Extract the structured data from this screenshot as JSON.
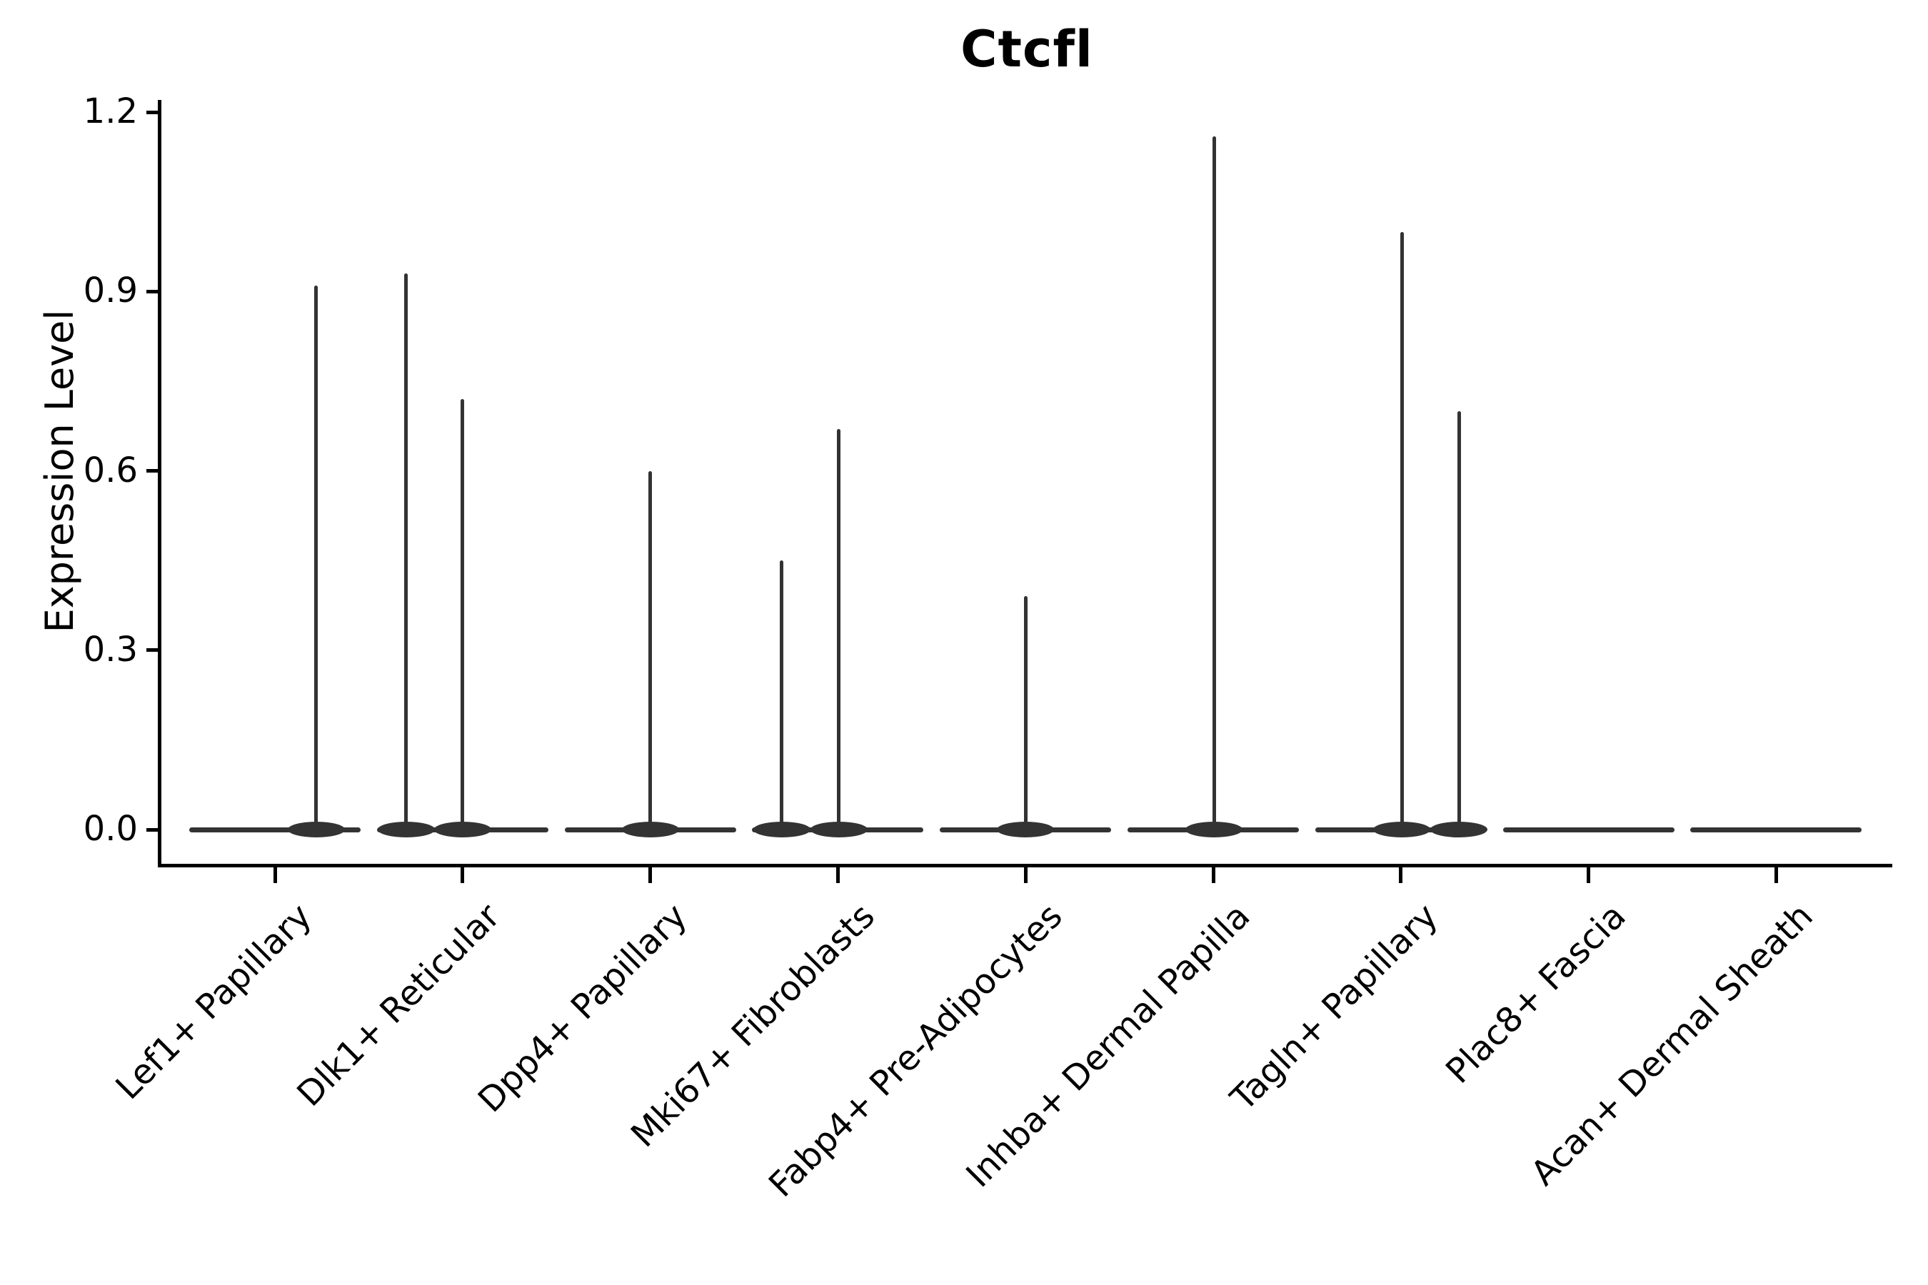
{
  "chart_data": {
    "type": "violin",
    "title": "Ctcfl",
    "ylabel": "Expression Level",
    "xlabel": "",
    "ylim": [
      0,
      1.2
    ],
    "yticks": [
      "0.0",
      "0.3",
      "0.6",
      "0.9",
      "1.2"
    ],
    "ytick_values": [
      0.0,
      0.3,
      0.6,
      0.9,
      1.2
    ],
    "grid": false,
    "legend": "none",
    "categories": [
      "Lef1+ Papillary",
      "Dlk1+ Reticular",
      "Dpp4+ Papillary",
      "Mki67+ Fibroblasts",
      "Fabp4+ Pre-Adipocytes",
      "Inhba+ Dermal Papilla",
      "Tagln+ Papillary",
      "Plac8+ Fascia",
      "Acan+ Dermal Sheath"
    ],
    "violins": [
      {
        "category": "Lef1+ Papillary",
        "base_halfwidth": 0.46,
        "spikes": [
          {
            "offset": 0.22,
            "value": 0.91
          }
        ]
      },
      {
        "category": "Dlk1+ Reticular",
        "base_halfwidth": 0.46,
        "spikes": [
          {
            "offset": -0.3,
            "value": 0.93
          },
          {
            "offset": 0.0,
            "value": 0.72
          }
        ]
      },
      {
        "category": "Dpp4+ Papillary",
        "base_halfwidth": 0.46,
        "spikes": [
          {
            "offset": 0.0,
            "value": 0.6
          }
        ]
      },
      {
        "category": "Mki67+ Fibroblasts",
        "base_halfwidth": 0.46,
        "spikes": [
          {
            "offset": -0.3,
            "value": 0.45
          },
          {
            "offset": 0.005,
            "value": 0.67
          }
        ]
      },
      {
        "category": "Fabp4+ Pre-Adipocytes",
        "base_halfwidth": 0.46,
        "spikes": [
          {
            "offset": 0.0,
            "value": 0.39
          }
        ]
      },
      {
        "category": "Inhba+ Dermal Papilla",
        "base_halfwidth": 0.46,
        "spikes": [
          {
            "offset": 0.005,
            "value": 1.16
          }
        ]
      },
      {
        "category": "Tagln+ Papillary",
        "base_halfwidth": 0.46,
        "spikes": [
          {
            "offset": 0.005,
            "value": 1.0
          },
          {
            "offset": 0.31,
            "value": 0.7
          }
        ]
      },
      {
        "category": "Plac8+ Fascia",
        "base_halfwidth": 0.46,
        "spikes": []
      },
      {
        "category": "Acan+ Dermal Sheath",
        "base_halfwidth": 0.46,
        "spikes": []
      }
    ],
    "colors": {
      "violin": "#333333",
      "axis": "#000000",
      "text": "#000000",
      "background": "#ffffff"
    }
  }
}
